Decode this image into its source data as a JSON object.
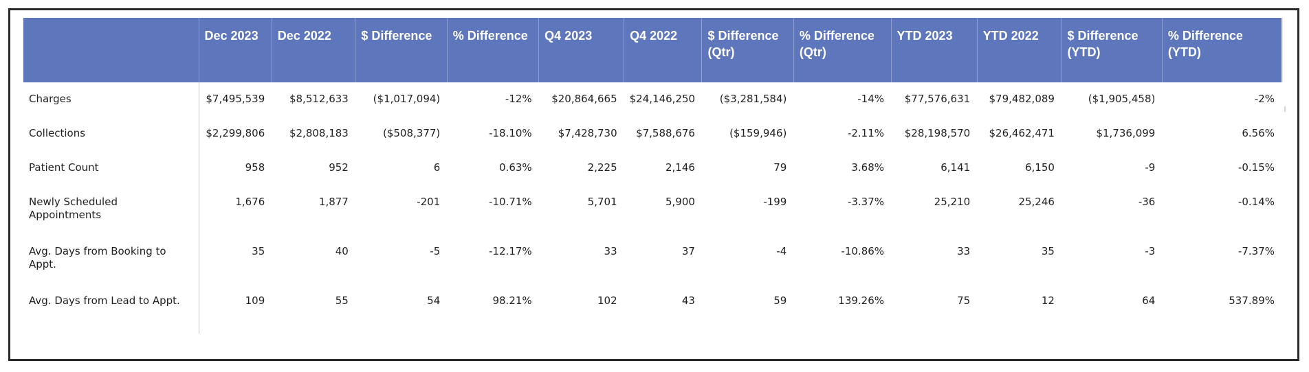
{
  "table": {
    "columns": [
      "",
      "Dec 2023",
      "Dec 2022",
      "$ Difference",
      "% Difference",
      "Q4 2023",
      "Q4 2022",
      "$ Difference (Qtr)",
      "% Difference (Qtr)",
      "YTD 2023",
      "YTD 2022",
      "$ Difference (YTD)",
      "% Difference (YTD)"
    ],
    "rows": [
      {
        "label": "Charges",
        "values": [
          "$7,495,539",
          "$8,512,633",
          "($1,017,094)",
          "-12%",
          "$20,864,665",
          "$24,146,250",
          "($3,281,584)",
          "-14%",
          "$77,576,631",
          "$79,482,089",
          "($1,905,458)",
          "-2%"
        ]
      },
      {
        "label": "Collections",
        "values": [
          "$2,299,806",
          "$2,808,183",
          "($508,377)",
          "-18.10%",
          "$7,428,730",
          "$7,588,676",
          "($159,946)",
          "-2.11%",
          "$28,198,570",
          "$26,462,471",
          "$1,736,099",
          "6.56%"
        ]
      },
      {
        "label": "Patient Count",
        "values": [
          "958",
          "952",
          "6",
          "0.63%",
          "2,225",
          "2,146",
          "79",
          "3.68%",
          "6,141",
          "6,150",
          "-9",
          "-0.15%"
        ]
      },
      {
        "label": "Newly Scheduled Appointments",
        "values": [
          "1,676",
          "1,877",
          "-201",
          "-10.71%",
          "5,701",
          "5,900",
          "-199",
          "-3.37%",
          "25,210",
          "25,246",
          "-36",
          "-0.14%"
        ]
      },
      {
        "label": "Avg. Days from Booking to Appt.",
        "values": [
          "35",
          "40",
          "-5",
          "-12.17%",
          "33",
          "37",
          "-4",
          "-10.86%",
          "33",
          "35",
          "-3",
          "-7.37%"
        ]
      },
      {
        "label": "Avg. Days from Lead to Appt.",
        "values": [
          "109",
          "55",
          "54",
          "98.21%",
          "102",
          "43",
          "59",
          "139.26%",
          "75",
          "12",
          "64",
          "537.89%"
        ]
      }
    ]
  },
  "colors": {
    "header_bg": "#5e76bb",
    "header_text": "#ffffff",
    "body_text": "#222222"
  }
}
